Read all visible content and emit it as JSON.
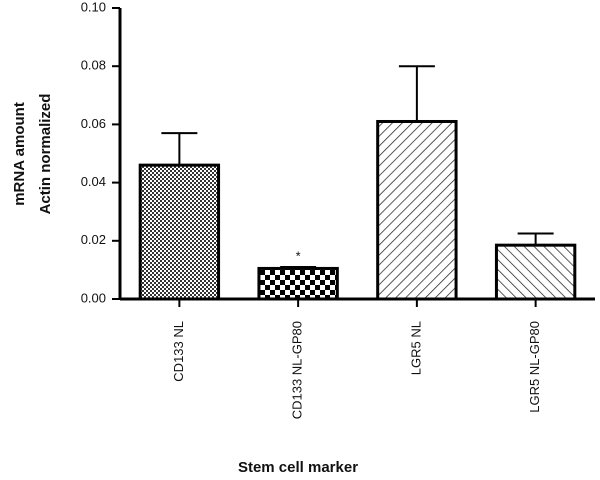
{
  "chart_data": {
    "type": "bar",
    "y_label": [
      "mRNA amount",
      "Actin normalized"
    ],
    "x_label": "Stem cell marker",
    "categories": [
      "CD133 NL",
      "CD133 NL-GP80",
      "LGR5 NL",
      "LGR5 NL-GP80"
    ],
    "values": [
      0.046,
      0.0105,
      0.061,
      0.0185
    ],
    "errors": [
      0.011,
      0.0005,
      0.019,
      0.004
    ],
    "color": "#000000",
    "annotations": [
      {
        "text": "*",
        "category": "CD133 NL-GP80"
      }
    ],
    "ylim": [
      0,
      0.1
    ],
    "yticks": [
      {
        "value": 0,
        "label": "0.00"
      },
      0.02,
      0.04,
      0.06,
      0.08,
      {
        "value": 0.1,
        "label": "0.10"
      }
    ]
  }
}
